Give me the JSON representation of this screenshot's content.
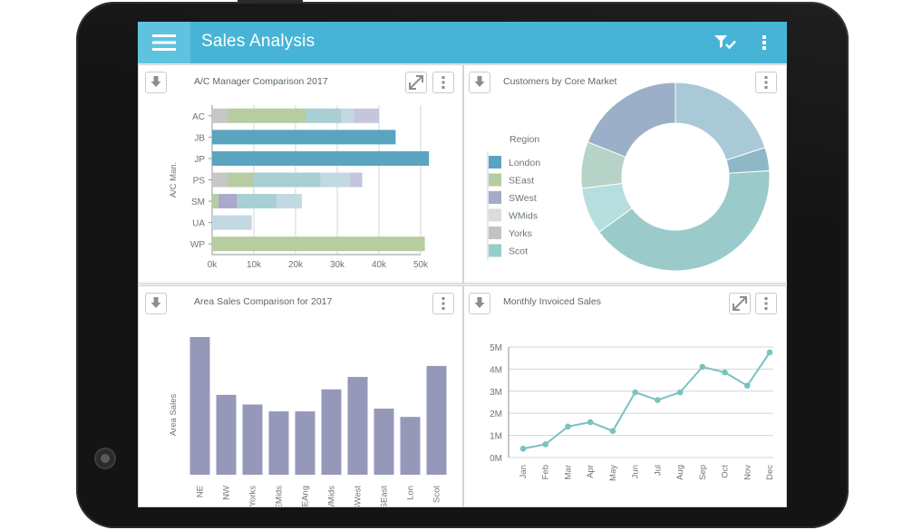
{
  "app": {
    "title": "Sales Analysis",
    "header_color": "#47b4d6",
    "icons": {
      "menu": "hamburger-menu-icon",
      "filter": "filter-check-icon",
      "more": "more-vertical-icon"
    }
  },
  "panels": {
    "manager": {
      "title": "A/C Manager Comparison 2017",
      "chart_data": {
        "type": "bar",
        "orientation": "horizontal",
        "stacked": true,
        "title": "A/C Manager Comparison 2017",
        "ylabel": "A/C Man.",
        "xlabel": "",
        "categories": [
          "AC",
          "JB",
          "JP",
          "PS",
          "SM",
          "UA",
          "WP"
        ],
        "xlim": [
          0,
          50000
        ],
        "x_ticks": [
          0,
          10000,
          20000,
          30000,
          40000,
          50000
        ],
        "x_tick_labels": [
          "0k",
          "10k",
          "20k",
          "30k",
          "40k",
          "50k"
        ],
        "grid": true,
        "series": [
          {
            "color": "#5aa4c0",
            "values": [
              0,
              44000,
              52000,
              0,
              0,
              0,
              0
            ]
          },
          {
            "color": "#c7c7c7",
            "values": [
              3500,
              0,
              0,
              3500,
              0,
              0,
              0
            ]
          },
          {
            "color": "#b7cca0",
            "values": [
              19000,
              0,
              0,
              6500,
              1500,
              0,
              51000
            ]
          },
          {
            "color": "#a9aacb",
            "values": [
              0,
              0,
              0,
              0,
              4500,
              0,
              0
            ]
          },
          {
            "color": "#a8cfd3",
            "values": [
              8500,
              0,
              0,
              16000,
              9500,
              0,
              0
            ]
          },
          {
            "color": "#c2d8e3",
            "values": [
              3000,
              0,
              0,
              7000,
              6000,
              9500,
              0
            ]
          },
          {
            "color": "#c5c6de",
            "values": [
              6000,
              0,
              0,
              3000,
              0,
              0,
              0
            ]
          }
        ]
      }
    },
    "customers": {
      "title": "Customers by Core Market",
      "legend_title": "Region",
      "chart_data": {
        "type": "pie",
        "donut": true,
        "title": "Customers by Core Market",
        "legend_position": "left",
        "labels": [
          "London",
          "SEast",
          "SWest",
          "WMids",
          "Yorks",
          "Scot"
        ],
        "colors": [
          "#5aa4c0",
          "#b4cc9f",
          "#a7a9c9",
          "#dcdcdc",
          "#c3c3c3",
          "#99cbcb"
        ],
        "slices": [
          {
            "color": "#a9c9d6",
            "value": 20
          },
          {
            "color": "#8eb8c8",
            "value": 4
          },
          {
            "color": "#9bcaca",
            "value": 41
          },
          {
            "color": "#b6dede",
            "value": 8
          },
          {
            "color": "#b7d3c8",
            "value": 8
          },
          {
            "color": "#9bb0c8",
            "value": 19
          }
        ]
      }
    },
    "area": {
      "title": "Area Sales Comparison for 2017",
      "chart_data": {
        "type": "bar",
        "title": "Area Sales Comparison for 2017",
        "ylabel": "Area Sales",
        "xlabel": "",
        "categories": [
          "NE",
          "NW",
          "Yorks",
          "EMids",
          "EAng",
          "WMids",
          "SWest",
          "SEast",
          "Lon",
          "Scot"
        ],
        "values": [
          100,
          58,
          51,
          46,
          46,
          62,
          71,
          48,
          42,
          79
        ],
        "ylim": [
          0,
          100
        ],
        "color": "#9698ba"
      }
    },
    "monthly": {
      "title": "Monthly Invoiced Sales",
      "chart_data": {
        "type": "line",
        "title": "Monthly Invoiced Sales",
        "xlabel": "",
        "ylabel": "",
        "categories": [
          "Jan",
          "Feb",
          "Mar",
          "Apr",
          "May",
          "Jun",
          "Jul",
          "Aug",
          "Sep",
          "Oct",
          "Nov",
          "Dec"
        ],
        "values": [
          0.4,
          0.6,
          1.4,
          1.6,
          1.2,
          2.95,
          2.6,
          2.95,
          4.1,
          3.85,
          3.25,
          4.75
        ],
        "ylim": [
          0,
          5
        ],
        "y_ticks": [
          0,
          1,
          2,
          3,
          4,
          5
        ],
        "y_tick_labels": [
          "0M",
          "1M",
          "2M",
          "3M",
          "4M",
          "5M"
        ],
        "grid": true,
        "color": "#79c2bf"
      }
    }
  }
}
